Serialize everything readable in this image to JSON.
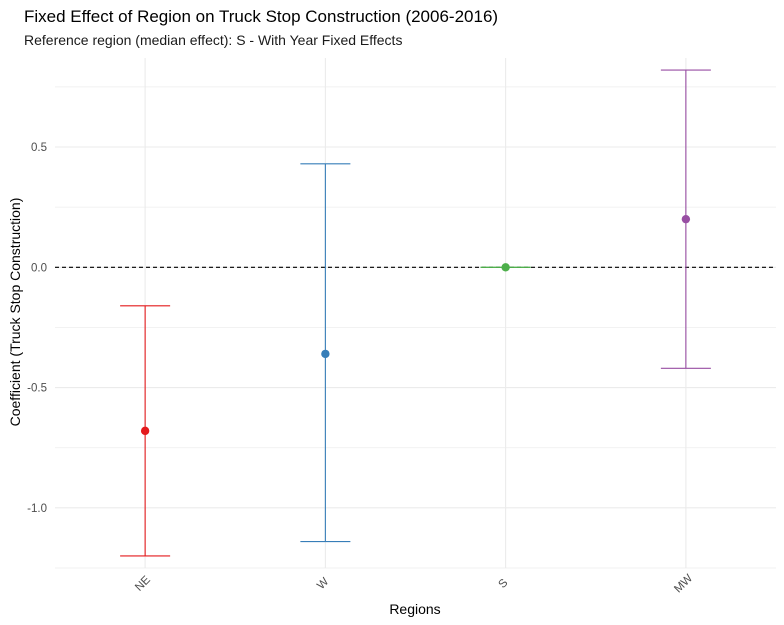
{
  "chart_data": {
    "type": "errorbar",
    "title": "Fixed Effect of Region on Truck Stop Construction (2006-2016)",
    "subtitle": "Reference region (median effect): S - With Year Fixed Effects",
    "xlabel": "Regions",
    "ylabel": "Coefficient (Truck Stop Construction)",
    "categories": [
      "NE",
      "W",
      "S",
      "MW"
    ],
    "estimates": [
      -0.68,
      -0.36,
      0.0,
      0.2
    ],
    "lower": [
      -1.2,
      -1.14,
      0.0,
      -0.42
    ],
    "upper": [
      -0.16,
      0.43,
      0.0,
      0.82
    ],
    "colors": [
      "#e41a1c",
      "#377eb8",
      "#4daf4a",
      "#984ea3"
    ],
    "reference_line": 0,
    "y_ticks": [
      -1.0,
      -0.5,
      0.0,
      0.5
    ],
    "y_tick_labels": [
      "-1.0",
      "-0.5",
      "0.0",
      "0.5"
    ],
    "ylim": [
      -1.25,
      0.87
    ],
    "grid": true,
    "legend": "none"
  }
}
